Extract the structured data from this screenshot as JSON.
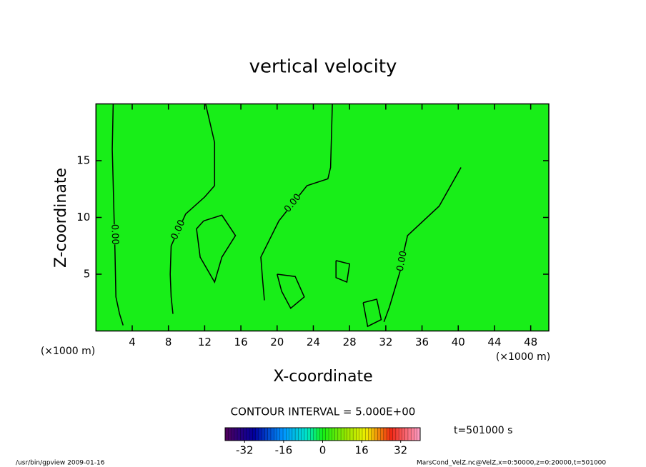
{
  "chart_data": {
    "type": "contour",
    "title": "vertical velocity",
    "x_label": "X-coordinate",
    "y_label": "Z-coordinate",
    "x_unit": "(×1000 m)",
    "xlim": [
      0,
      50
    ],
    "xticks": [
      4,
      8,
      12,
      16,
      20,
      24,
      28,
      32,
      36,
      40,
      44,
      48
    ],
    "ylim": [
      0,
      20
    ],
    "yticks": [
      5,
      10,
      15
    ],
    "fill_color": "#18ee18",
    "line_color": "#000000",
    "contours": [
      {
        "label": "0.00",
        "x": [
          1.9,
          1.8,
          1.9,
          2.0,
          2.1,
          2.2,
          2.6,
          3.0
        ],
        "z": [
          20,
          16,
          13,
          10,
          7,
          3,
          1.5,
          0.5
        ]
      },
      {
        "label": "0.00",
        "x": [
          12.1,
          13.1,
          13.1,
          12.0,
          9.9,
          8.3,
          8.2,
          8.3,
          8.5
        ],
        "z": [
          20,
          16.6,
          12.8,
          11.8,
          10.3,
          7.5,
          5,
          3.0,
          1.5
        ]
      },
      {
        "label": "0.00",
        "x": [
          26.1,
          25.9,
          25.6,
          23.3,
          20.2,
          18.2,
          18.4,
          18.6
        ],
        "z": [
          20,
          14.4,
          13.4,
          12.8,
          9.7,
          6.5,
          4.5,
          2.7
        ]
      },
      {
        "label": "0.00",
        "x": [
          40.3,
          37.9,
          34.4,
          34.0,
          33.6,
          32.4,
          31.8
        ],
        "z": [
          14.4,
          11.0,
          8.4,
          7.0,
          5.3,
          2.1,
          0.8
        ]
      },
      {
        "x": [
          11.9,
          13.9,
          15.4,
          13.9,
          13.1,
          11.5,
          11.1,
          11.9
        ],
        "z": [
          9.7,
          10.2,
          8.4,
          6.5,
          4.3,
          6.5,
          9.0,
          9.7
        ]
      },
      {
        "x": [
          26.5,
          28.0,
          27.7,
          26.5,
          26.5
        ],
        "z": [
          6.2,
          5.9,
          4.3,
          4.7,
          6.2
        ]
      },
      {
        "x": [
          20.0,
          22.0,
          23.0,
          21.5,
          20.5,
          20.0
        ],
        "z": [
          5.0,
          4.8,
          3.0,
          2.0,
          3.5,
          5.0
        ]
      },
      {
        "x": [
          29.5,
          31.0,
          31.5,
          30.0,
          29.5
        ],
        "z": [
          2.5,
          2.8,
          1.0,
          0.4,
          2.5
        ]
      }
    ],
    "colorbar": {
      "clim": [
        -40,
        40
      ],
      "ticks": [
        -32,
        -16,
        0,
        16,
        32
      ]
    },
    "contour_interval": "CONTOUR INTERVAL = 5.000E+00",
    "time_label": "t=501000 s",
    "footer_left": "/usr/bin/gpview   2009-01-16",
    "footer_right": "MarsCond_VelZ.nc@VelZ,x=0:50000,z=0:20000,t=501000"
  }
}
